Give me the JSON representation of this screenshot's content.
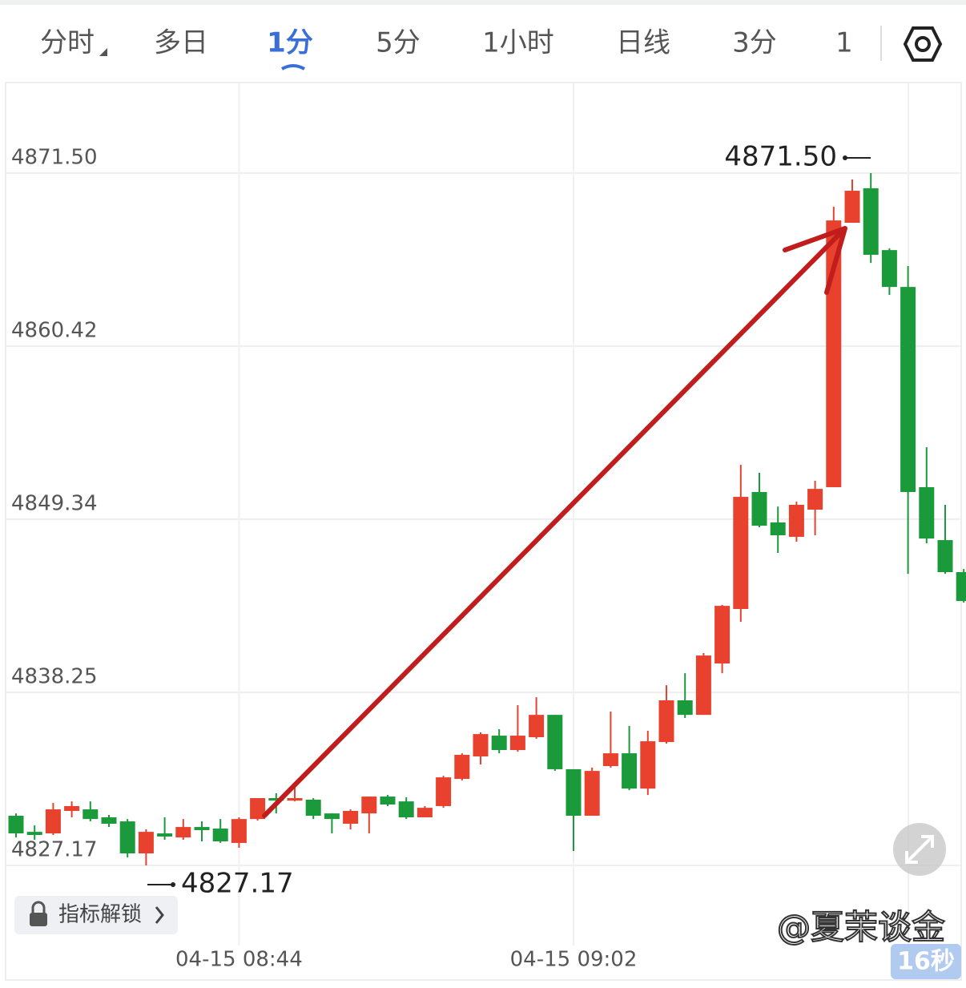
{
  "tabs": [
    "分时",
    "多日",
    "1分",
    "5分",
    "1小时",
    "日线",
    "3分",
    "1"
  ],
  "chart_data": {
    "type": "candlestick",
    "categories": [
      null,
      null,
      null,
      null,
      null,
      null,
      null,
      null,
      null,
      null,
      null,
      null,
      "04-15 08:44",
      null,
      null,
      null,
      null,
      null,
      null,
      null,
      null,
      null,
      null,
      null,
      null,
      null,
      null,
      null,
      null,
      null,
      "04-15 09:02",
      null,
      null,
      null,
      null,
      null,
      null,
      null,
      null,
      null,
      null,
      null,
      null,
      null,
      null,
      null,
      null,
      null,
      null,
      null,
      null,
      null
    ],
    "open": [
      4830.35,
      4829.32,
      4829.22,
      4830.66,
      4830.76,
      4830.25,
      4829.99,
      4827.94,
      4829.22,
      4828.96,
      4829.63,
      4829.53,
      4828.61,
      4830.14,
      4831.48,
      4831.32,
      4831.38,
      4830.5,
      4829.84,
      4830.5,
      4831.58,
      4831.27,
      4830.25,
      4830.97,
      4832.71,
      4834.15,
      4835.48,
      4834.56,
      4835.38,
      4836.81,
      4833.33,
      4830.35,
      4833.53,
      4834.35,
      4832.09,
      4835.07,
      4837.74,
      4836.81,
      4840.1,
      4843.59,
      4851.08,
      4849.13,
      4848.21,
      4849.95,
      4851.39,
      4868.32,
      4870.53,
      4866.57,
      4864.21,
      4851.39,
      4848.0,
      4845.95
    ],
    "high": [
      4830.5,
      4829.73,
      4831.17,
      4831.27,
      4831.27,
      4830.4,
      4830.14,
      4829.48,
      4830.25,
      4830.14,
      4829.99,
      4830.14,
      4830.25,
      4831.48,
      4831.79,
      4832.2,
      4831.48,
      4830.5,
      4830.76,
      4831.58,
      4831.68,
      4831.53,
      4830.97,
      4832.91,
      4834.35,
      4835.69,
      4835.89,
      4837.43,
      4837.94,
      4836.81,
      4833.33,
      4833.43,
      4837.02,
      4836.1,
      4835.79,
      4838.71,
      4839.48,
      4840.77,
      4843.85,
      4852.82,
      4852.31,
      4850.15,
      4850.46,
      4851.8,
      4869.35,
      4871.09,
      4871.5,
      4866.68,
      4865.55,
      4853.95,
      4850.26,
      4846.15
    ],
    "low": [
      4828.96,
      4828.81,
      4829.12,
      4830.25,
      4829.99,
      4829.63,
      4827.68,
      4827.17,
      4828.81,
      4828.81,
      4828.71,
      4828.61,
      4828.3,
      4830.04,
      4830.5,
      4831.27,
      4830.14,
      4829.22,
      4829.48,
      4829.22,
      4830.97,
      4830.14,
      4830.25,
      4830.86,
      4832.61,
      4833.63,
      4834.35,
      4834.45,
      4835.28,
      4833.22,
      4828.09,
      4830.35,
      4833.43,
      4831.99,
      4831.68,
      4834.97,
      4836.61,
      4836.81,
      4839.48,
      4842.77,
      4848.82,
      4847.18,
      4847.9,
      4848.31,
      4851.39,
      4868.32,
      4865.75,
      4863.7,
      4845.84,
      4847.8,
      4845.84,
      4844.0
    ],
    "close": [
      4829.22,
      4829.12,
      4830.76,
      4830.97,
      4830.14,
      4829.84,
      4827.94,
      4829.32,
      4829.02,
      4829.63,
      4829.43,
      4828.71,
      4830.14,
      4831.48,
      4831.32,
      4831.48,
      4830.35,
      4830.14,
      4830.66,
      4831.58,
      4831.07,
      4830.25,
      4830.86,
      4832.81,
      4834.25,
      4835.58,
      4834.56,
      4835.48,
      4836.81,
      4833.33,
      4830.35,
      4833.22,
      4834.35,
      4832.09,
      4835.12,
      4837.74,
      4836.81,
      4840.61,
      4843.79,
      4850.77,
      4848.92,
      4848.31,
      4850.26,
      4851.28,
      4868.47,
      4870.37,
      4866.27,
      4864.21,
      4851.08,
      4848.1,
      4845.95,
      4844.1
    ],
    "up_color": "#e8412e",
    "down_color": "#1b9a3b",
    "ylim": [
      4822.04,
      4877.3
    ],
    "yticks": [
      4827.17,
      4838.25,
      4849.34,
      4860.42,
      {
        "value": 4871.5,
        "label": "4871.50"
      }
    ],
    "grid": true,
    "annotations": [
      {
        "text": "4871.50",
        "value": 4871.5
      },
      {
        "text": "4827.17",
        "value": 4827.17
      }
    ],
    "watermark": "@夏茉谈金"
  },
  "lock_button": "指标解锁",
  "timer_badge": "16秒"
}
